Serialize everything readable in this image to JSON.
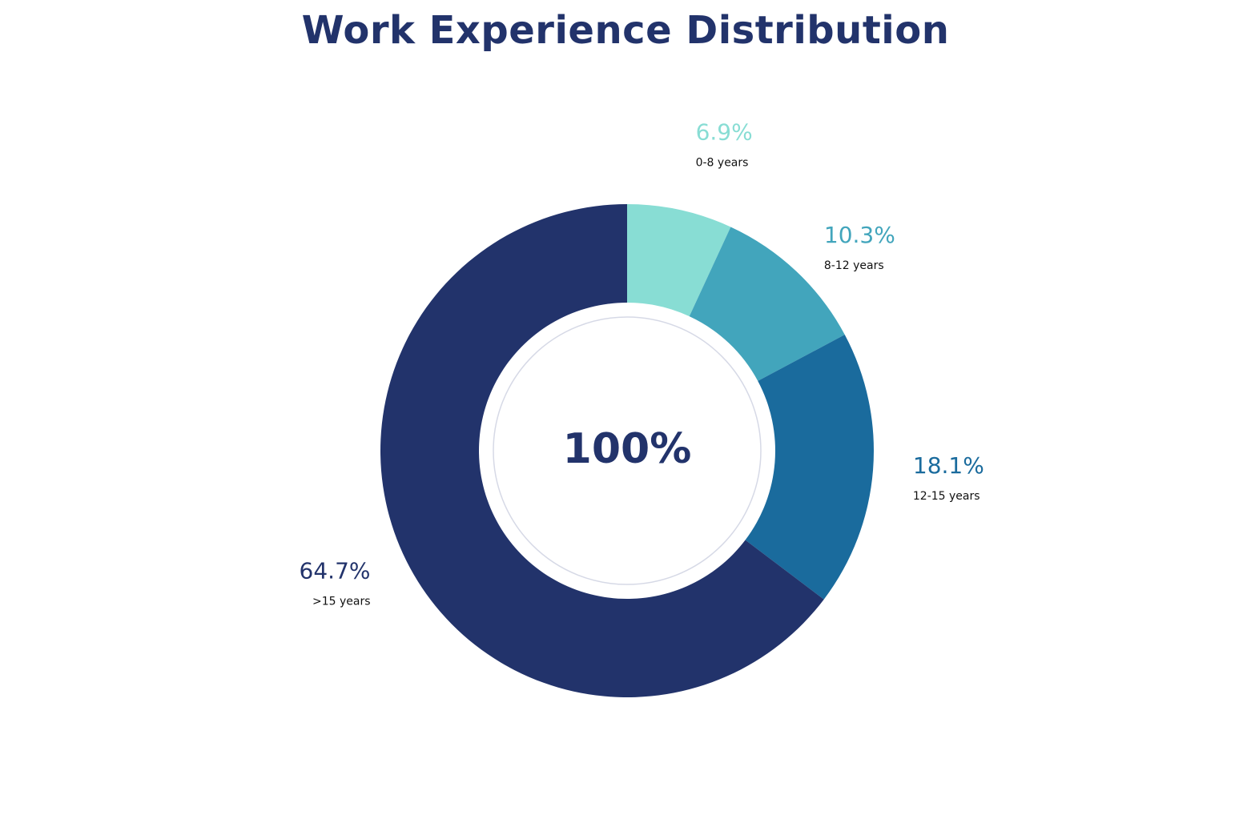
{
  "chart_data": {
    "type": "pie",
    "title": "Work Experience Distribution",
    "center_label": "100%",
    "slices": [
      {
        "category": "0-8 years",
        "value": 6.9,
        "label": "6.9%",
        "color": "#88ddd4"
      },
      {
        "category": "8-12 years",
        "value": 10.3,
        "label": "10.3%",
        "color": "#42a5bc"
      },
      {
        "category": "12-15 years",
        "value": 18.1,
        "label": "18.1%",
        "color": "#1a6b9d"
      },
      {
        "category": ">15 years",
        "value": 64.7,
        "label": "64.7%",
        "color": "#22336b"
      }
    ],
    "legend": "none",
    "label_placement": "outside"
  }
}
